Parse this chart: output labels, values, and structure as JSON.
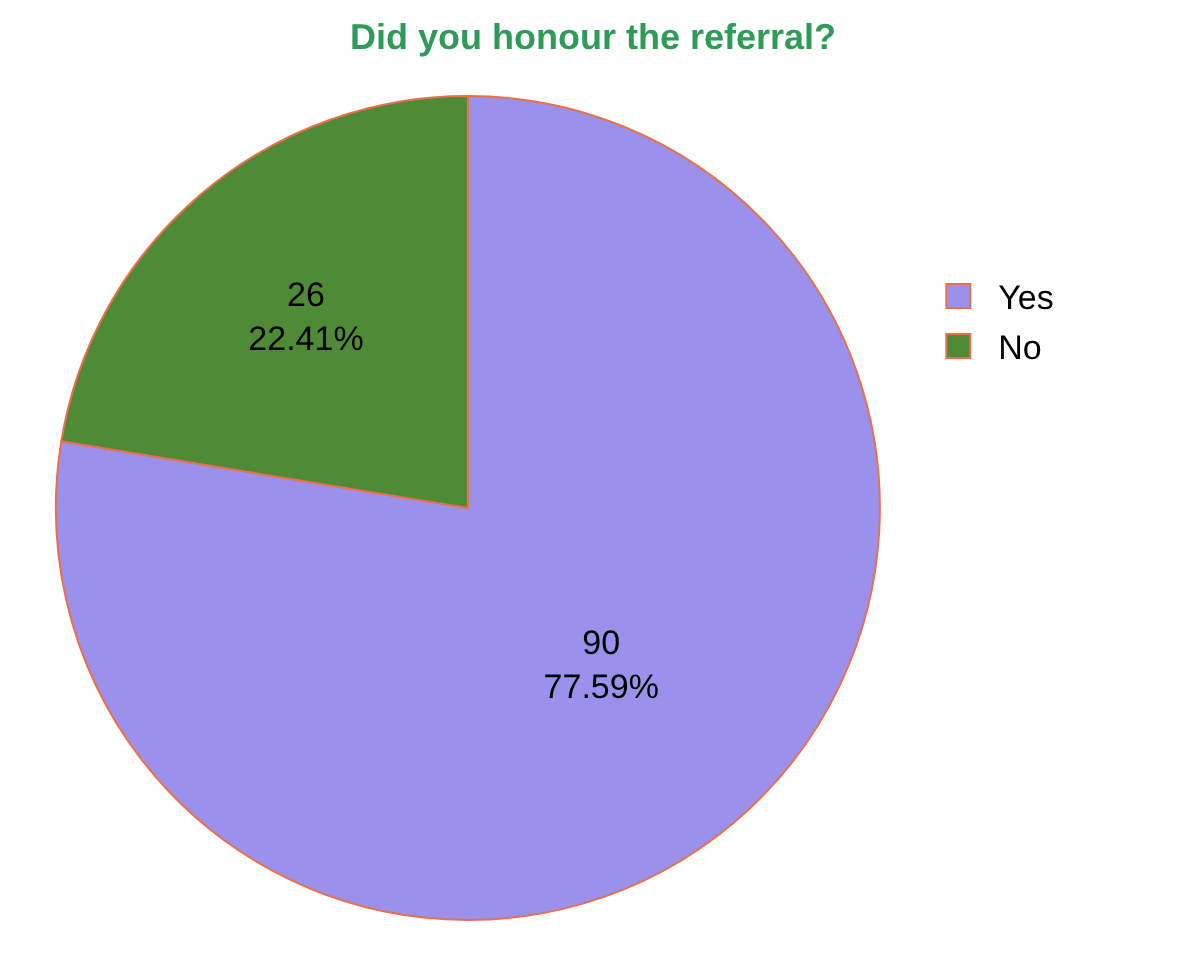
{
  "chart_data": {
    "type": "pie",
    "title": "Did you honour the referral?",
    "categories": [
      "Yes",
      "No"
    ],
    "values": [
      90,
      26
    ],
    "value_labels": [
      "90\n77.59%",
      "26\n22.41%"
    ],
    "colors": [
      "#9b91ec",
      "#4f8a37"
    ],
    "legend": "right"
  }
}
